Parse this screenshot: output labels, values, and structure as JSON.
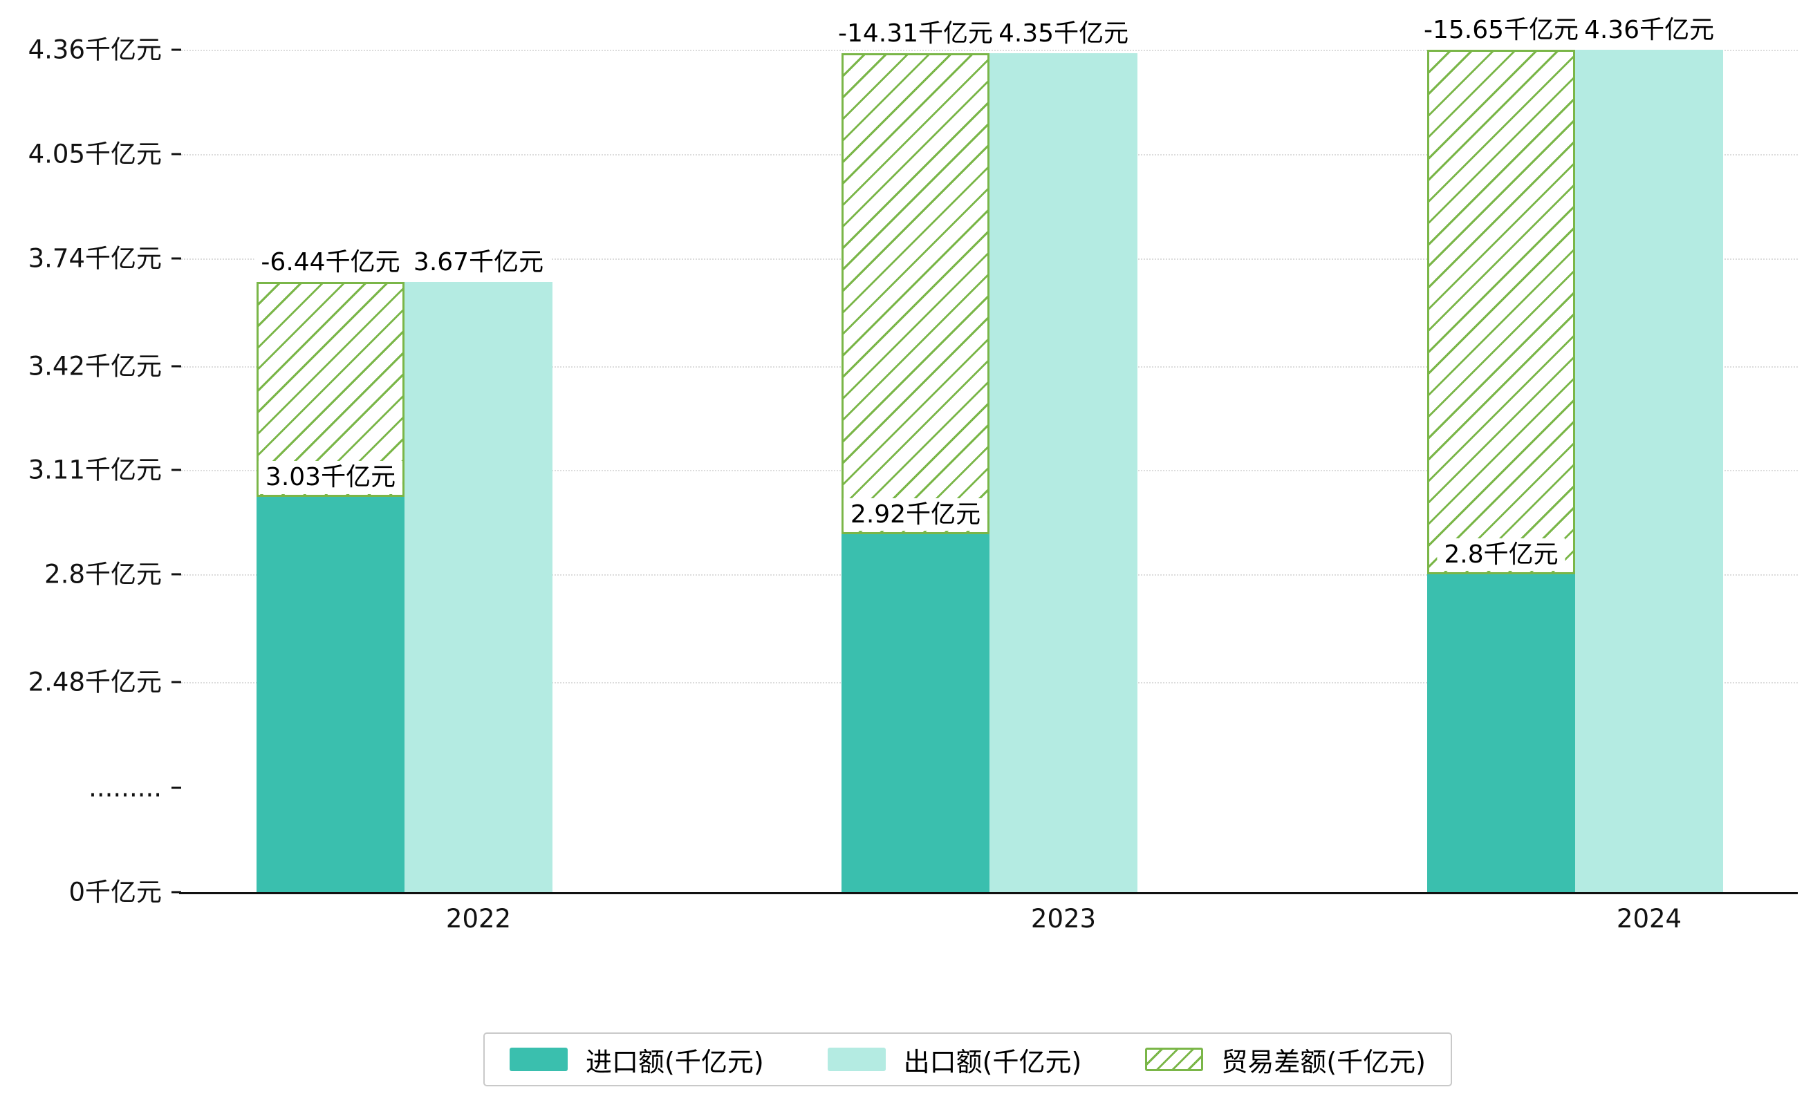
{
  "chart_data": {
    "type": "bar",
    "title": "",
    "unit": "千亿元",
    "categories": [
      "2022",
      "2023",
      "2024"
    ],
    "series": [
      {
        "name": "进口额(千亿元)",
        "type": "bar",
        "color": "#3abfae",
        "values": [
          3.03,
          2.92,
          2.8
        ],
        "labels": [
          "3.03千亿元",
          "2.92千亿元",
          "2.8千亿元"
        ]
      },
      {
        "name": "出口额(千亿元)",
        "type": "bar",
        "color": "#b4ebe2",
        "values": [
          3.67,
          4.35,
          4.36
        ],
        "labels": [
          "3.67千亿元",
          "4.35千亿元",
          "4.36千亿元"
        ]
      },
      {
        "name": "贸易差额(千亿元)",
        "type": "hatched-range-bar",
        "color": "#7ab648",
        "values": [
          -6.44,
          -14.31,
          -15.65
        ],
        "labels": [
          "-6.44千亿元",
          "-14.31千亿元",
          "-15.65千亿元"
        ]
      }
    ],
    "y_ticks": [
      {
        "label": "4.36千亿元",
        "value": 4.36
      },
      {
        "label": "4.05千亿元",
        "value": 4.05
      },
      {
        "label": "3.74千亿元",
        "value": 3.74
      },
      {
        "label": "3.42千亿元",
        "value": 3.42
      },
      {
        "label": "3.11千亿元",
        "value": 3.11
      },
      {
        "label": "2.8千亿元",
        "value": 2.8
      },
      {
        "label": "2.48千亿元",
        "value": 2.48
      },
      {
        "label": ".........",
        "value": null,
        "axis_break": true
      },
      {
        "label": "0千亿元",
        "value": 0
      }
    ],
    "ylim": [
      0,
      4.36
    ],
    "axis_break": true,
    "grid": "dotted-horizontal",
    "legend_position": "bottom-center"
  }
}
